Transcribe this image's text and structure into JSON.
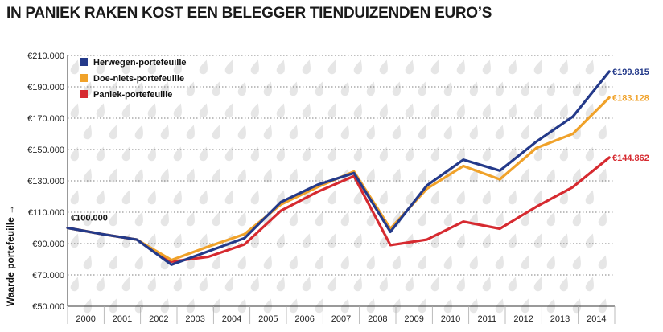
{
  "chart_data": {
    "type": "line",
    "title": "IN PANIEK RAKEN KOST EEN BELEGGER TIENDUIZENDEN EURO’S",
    "xlabel": "",
    "ylabel": "Waarde portefeuille →",
    "ylim": [
      50000,
      210000
    ],
    "yticks": [
      {
        "value": 50000,
        "label": "€50.000"
      },
      {
        "value": 70000,
        "label": "€70.000"
      },
      {
        "value": 90000,
        "label": "€90.000"
      },
      {
        "value": 110000,
        "label": "€110.000"
      },
      {
        "value": 130000,
        "label": "€130.000"
      },
      {
        "value": 150000,
        "label": "€150.000"
      },
      {
        "value": 170000,
        "label": "€170.000"
      },
      {
        "value": 190000,
        "label": "€190.000"
      },
      {
        "value": 210000,
        "label": "€210.000"
      }
    ],
    "categories": [
      "2000",
      "2001",
      "2002",
      "2003",
      "2004",
      "2005",
      "2006",
      "2007",
      "2008",
      "2009",
      "2010",
      "2011",
      "2012",
      "2013",
      "2014"
    ],
    "x": [
      0,
      0.95,
      1.9,
      2.85,
      3.85,
      4.85,
      5.85,
      6.85,
      7.85,
      8.85,
      9.85,
      10.85,
      11.85,
      12.85,
      13.85,
      14.85
    ],
    "start_label": "€100.000",
    "series": [
      {
        "name": "Herwegen-portefeuille",
        "color": "#243a8a",
        "values": [
          100000,
          96000,
          92500,
          76500,
          85000,
          93500,
          116500,
          127500,
          135000,
          97500,
          127000,
          143500,
          136500,
          155000,
          171000,
          199815
        ],
        "end_label": "€199.815"
      },
      {
        "name": "Doe-niets-portefeuille",
        "color": "#f0a22a",
        "values": [
          100000,
          96000,
          92500,
          79500,
          88000,
          96000,
          115000,
          126000,
          136000,
          99500,
          125000,
          139500,
          131000,
          151000,
          160000,
          183128
        ],
        "end_label": "€183.128"
      },
      {
        "name": "Paniek-portefeuille",
        "color": "#d62a30",
        "values": [
          100000,
          96000,
          92500,
          78500,
          81500,
          89500,
          111000,
          123000,
          133000,
          89000,
          92500,
          104000,
          99500,
          113500,
          126000,
          144862
        ],
        "end_label": "€144.862"
      }
    ]
  }
}
